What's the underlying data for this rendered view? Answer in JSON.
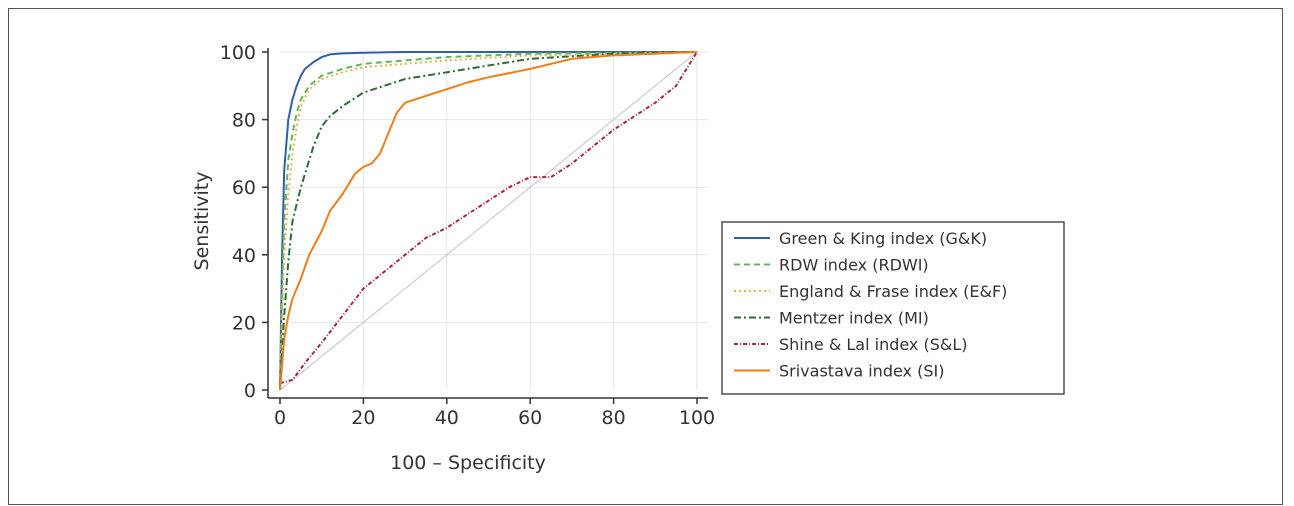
{
  "chart_data": {
    "type": "line",
    "title": "",
    "xlabel": "100 – Specificity",
    "ylabel": "Sensitivity",
    "xlim": [
      0,
      100
    ],
    "ylim": [
      0,
      100
    ],
    "xticks": [
      "0",
      "20",
      "40",
      "60",
      "80",
      "100"
    ],
    "yticks": [
      "0",
      "20",
      "40",
      "60",
      "80",
      "100"
    ],
    "grid": true,
    "legend_position": "right",
    "reference_line": {
      "x": [
        0,
        100
      ],
      "y": [
        0,
        100
      ],
      "color": "#cccccc"
    },
    "series": [
      {
        "name": "Green & King index (G&K)",
        "color": "#2f5fa8",
        "dash": "",
        "x": [
          0,
          0.5,
          1,
          2,
          3,
          4,
          5,
          6,
          8,
          10,
          12,
          15,
          20,
          30,
          50,
          100
        ],
        "y": [
          0,
          40,
          65,
          80,
          86,
          90,
          93,
          95,
          97,
          98.5,
          99.3,
          99.6,
          99.8,
          100,
          100,
          100
        ]
      },
      {
        "name": "RDW index (RDWI)",
        "color": "#5cb85c",
        "dash": "6,4",
        "x": [
          0,
          0.5,
          1,
          2,
          3,
          4,
          5,
          7,
          10,
          15,
          20,
          30,
          40,
          60,
          100
        ],
        "y": [
          0,
          30,
          50,
          68,
          76,
          82,
          86,
          90,
          93,
          95,
          96.5,
          97.5,
          98.5,
          99.5,
          100
        ]
      },
      {
        "name": "England & Frase index (E&F)",
        "color": "#e6b04a",
        "dash": "2,3",
        "x": [
          0,
          0.5,
          1,
          2,
          3,
          4,
          5,
          7,
          10,
          15,
          20,
          30,
          40,
          60,
          100
        ],
        "y": [
          0,
          22,
          40,
          58,
          70,
          78,
          84,
          89,
          92,
          94,
          95.5,
          96.5,
          97.5,
          99,
          100
        ]
      },
      {
        "name": "Mentzer index (MI)",
        "color": "#2e6b35",
        "dash": "7,3,2,3",
        "x": [
          0,
          1,
          2,
          3,
          5,
          8,
          10,
          12,
          15,
          20,
          25,
          30,
          40,
          50,
          60,
          80,
          100
        ],
        "y": [
          0,
          22,
          38,
          50,
          60,
          72,
          78,
          81,
          84,
          88,
          90,
          92,
          94,
          96,
          98,
          99.5,
          100
        ]
      },
      {
        "name": "Shine & Lal index (S&L)",
        "color": "#a62639",
        "dash": "4,2,1,2",
        "x": [
          0,
          3,
          6,
          10,
          15,
          20,
          25,
          30,
          35,
          40,
          45,
          50,
          55,
          60,
          65,
          70,
          75,
          80,
          85,
          90,
          95,
          100
        ],
        "y": [
          2,
          3,
          8,
          14,
          22,
          30,
          35,
          40,
          45,
          48,
          52,
          56,
          60,
          63,
          63,
          67,
          72,
          77,
          81,
          85,
          90,
          100
        ]
      },
      {
        "name": "Srivastava index (SI)",
        "color": "#f07d1a",
        "dash": "",
        "x": [
          0,
          1,
          2,
          3,
          5,
          7,
          10,
          12,
          15,
          18,
          20,
          22,
          24,
          26,
          28,
          30,
          35,
          40,
          45,
          50,
          60,
          70,
          80,
          100
        ],
        "y": [
          0,
          15,
          22,
          27,
          33,
          40,
          47,
          53,
          58,
          64,
          66,
          67,
          70,
          76,
          82,
          85,
          87,
          89,
          91,
          92.5,
          95,
          98,
          99,
          100
        ]
      }
    ]
  }
}
